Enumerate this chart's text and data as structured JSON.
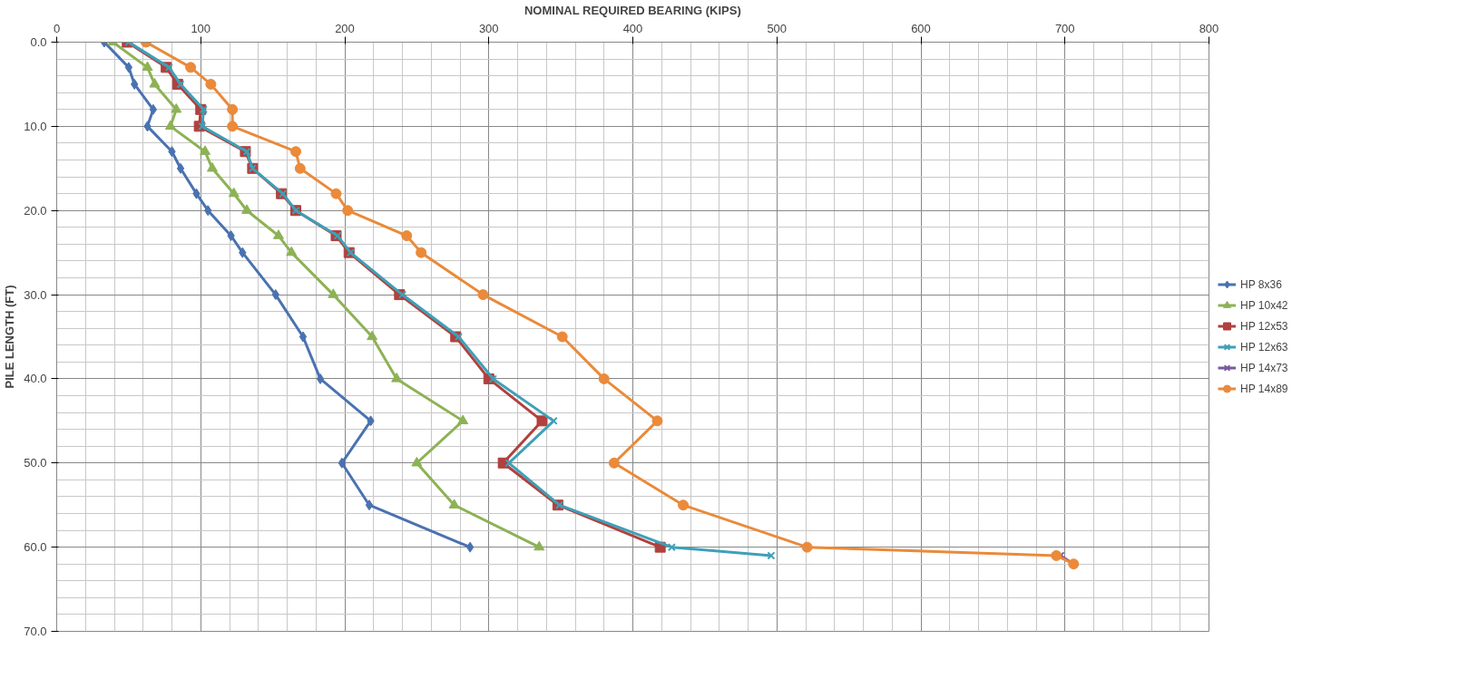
{
  "chart_data": {
    "type": "line",
    "xlabel": "NOMINAL REQUIRED BEARING (KIPS)",
    "ylabel": "PILE LENGTH (FT)",
    "xlim": [
      0,
      800
    ],
    "xticks": [
      0,
      100,
      200,
      300,
      400,
      500,
      600,
      700,
      800
    ],
    "ylim": [
      70,
      0
    ],
    "yticks": [
      {
        "value": 0,
        "label": "0.0"
      },
      {
        "value": 10,
        "label": "10.0"
      },
      {
        "value": 20,
        "label": "20.0"
      },
      {
        "value": 30,
        "label": "30.0"
      },
      {
        "value": 40,
        "label": "40.0"
      },
      {
        "value": 50,
        "label": "50.0"
      },
      {
        "value": 60,
        "label": "60.0"
      },
      {
        "value": 70,
        "label": "70.0"
      }
    ],
    "grid": true,
    "legend": "right",
    "line_style": "solid",
    "series": [
      {
        "name": "HP 8x36",
        "color": "#4a72b0",
        "marker": "diamond",
        "x": [
          33,
          50,
          54,
          67,
          63,
          80,
          86,
          97,
          105,
          121,
          129,
          152,
          171,
          183,
          218,
          198,
          217,
          287
        ],
        "values": [
          0,
          3,
          5,
          8,
          10,
          13,
          15,
          18,
          20,
          23,
          25,
          30,
          35,
          40,
          45,
          50,
          55,
          60
        ]
      },
      {
        "name": "HP 10x42",
        "color": "#8db255",
        "marker": "triangle",
        "x": [
          39,
          63,
          68,
          83,
          79,
          103,
          108,
          123,
          132,
          154,
          163,
          192,
          219,
          236,
          282,
          250,
          276,
          335
        ],
        "values": [
          0,
          3,
          5,
          8,
          10,
          13,
          15,
          18,
          20,
          23,
          25,
          30,
          35,
          40,
          45,
          50,
          55,
          60
        ]
      },
      {
        "name": "HP 12x53",
        "color": "#b0413e",
        "marker": "square",
        "x": [
          49,
          76,
          84,
          100,
          99,
          131,
          136,
          156,
          166,
          194,
          203,
          238,
          277,
          300,
          337,
          310,
          348,
          419
        ],
        "values": [
          0,
          3,
          5,
          8,
          10,
          13,
          15,
          18,
          20,
          23,
          25,
          30,
          35,
          40,
          45,
          50,
          55,
          60
        ]
      },
      {
        "name": "HP 12x63",
        "color": "#3ea0b8",
        "marker": "cross",
        "x": [
          50,
          78,
          86,
          102,
          101,
          132,
          136,
          157,
          166,
          195,
          204,
          240,
          279,
          303,
          345,
          314,
          349,
          427,
          496
        ],
        "values": [
          0,
          3,
          5,
          8,
          10,
          13,
          15,
          18,
          20,
          23,
          25,
          30,
          35,
          40,
          45,
          50,
          55,
          60,
          61
        ]
      },
      {
        "name": "HP 14x73",
        "color": "#7a5a9e",
        "marker": "cross",
        "x": [
          697,
          706
        ],
        "values": [
          61,
          62
        ]
      },
      {
        "name": "HP 14x89",
        "color": "#ea8a3a",
        "marker": "circle",
        "x": [
          62,
          93,
          107,
          122,
          122,
          166,
          169,
          194,
          202,
          243,
          253,
          296,
          351,
          380,
          417,
          387,
          435,
          521,
          694,
          706
        ],
        "values": [
          0,
          3,
          5,
          8,
          10,
          13,
          15,
          18,
          20,
          23,
          25,
          30,
          35,
          40,
          45,
          50,
          55,
          60,
          61,
          62
        ]
      }
    ]
  }
}
